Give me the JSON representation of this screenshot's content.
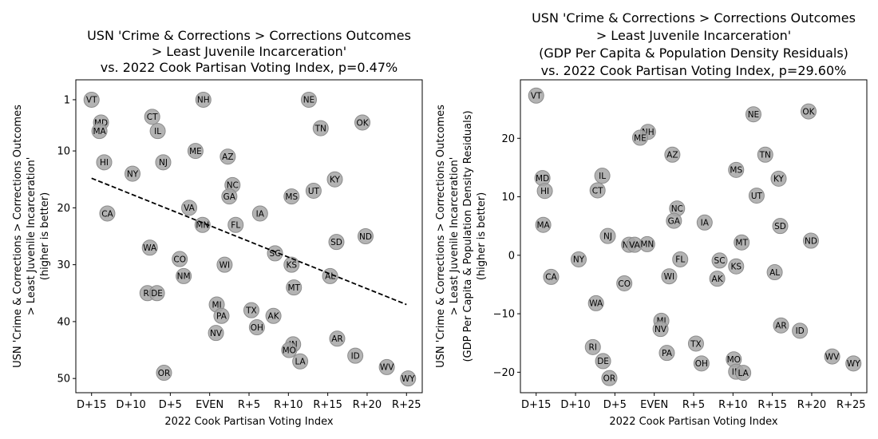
{
  "chart_data": [
    {
      "type": "scatter",
      "title": [
        "USN 'Crime & Corrections > Corrections Outcomes",
        "> Least Juvenile Incarceration'",
        "vs. 2022 Cook Partisan Voting Index, p=0.47%"
      ],
      "xlabel": "2022 Cook Partisan Voting Index",
      "ylabel": [
        "USN 'Crime & Corrections > Corrections Outcomes",
        "> Least Juvenile Incarceration'",
        "(higher is better)"
      ],
      "xlim": [
        -17,
        27
      ],
      "ylim": [
        52.5,
        -2.5
      ],
      "y_inverted": true,
      "xticks": [
        -15,
        -10,
        -5,
        0,
        5,
        10,
        15,
        20,
        25
      ],
      "xtick_labels": [
        "D+15",
        "D+10",
        "D+5",
        "EVEN",
        "R+5",
        "R+10",
        "R+15",
        "R+20",
        "R+25"
      ],
      "yticks": [
        1,
        10,
        20,
        30,
        40,
        50
      ],
      "ytick_labels": [
        "1",
        "10",
        "20",
        "30",
        "40",
        "50"
      ],
      "trendline": {
        "x": [
          -15,
          25
        ],
        "y": [
          14.8,
          37.0
        ]
      },
      "points": [
        {
          "label": "VT",
          "x": -15,
          "y": 1
        },
        {
          "label": "MD",
          "x": -13.8,
          "y": 5
        },
        {
          "label": "MA",
          "x": -14,
          "y": 6.5
        },
        {
          "label": "HI",
          "x": -13.4,
          "y": 12
        },
        {
          "label": "CA",
          "x": -13,
          "y": 21
        },
        {
          "label": "NY",
          "x": -9.8,
          "y": 14
        },
        {
          "label": "CT",
          "x": -7.3,
          "y": 4
        },
        {
          "label": "IL",
          "x": -6.6,
          "y": 6.5
        },
        {
          "label": "NJ",
          "x": -5.9,
          "y": 12
        },
        {
          "label": "WA",
          "x": -7.6,
          "y": 27
        },
        {
          "label": "RI",
          "x": -7.9,
          "y": 35
        },
        {
          "label": "DE",
          "x": -6.7,
          "y": 35
        },
        {
          "label": "OR",
          "x": -5.8,
          "y": 49
        },
        {
          "label": "ME",
          "x": -1.8,
          "y": 10
        },
        {
          "label": "VA",
          "x": -2.6,
          "y": 20
        },
        {
          "label": "CO",
          "x": -3.8,
          "y": 29
        },
        {
          "label": "NM",
          "x": -3.3,
          "y": 32
        },
        {
          "label": "MN",
          "x": -0.9,
          "y": 23
        },
        {
          "label": "NH",
          "x": -0.8,
          "y": 1
        },
        {
          "label": "AZ",
          "x": 2.3,
          "y": 11
        },
        {
          "label": "NC",
          "x": 2.9,
          "y": 16
        },
        {
          "label": "GA",
          "x": 2.5,
          "y": 18
        },
        {
          "label": "FL",
          "x": 3.3,
          "y": 23
        },
        {
          "label": "WI",
          "x": 1.9,
          "y": 30
        },
        {
          "label": "MI",
          "x": 0.9,
          "y": 37
        },
        {
          "label": "PA",
          "x": 1.5,
          "y": 39
        },
        {
          "label": "NV",
          "x": 0.8,
          "y": 42
        },
        {
          "label": "IA",
          "x": 6.4,
          "y": 21
        },
        {
          "label": "SC",
          "x": 8.3,
          "y": 28
        },
        {
          "label": "TX",
          "x": 5.3,
          "y": 38
        },
        {
          "label": "OH",
          "x": 6,
          "y": 41
        },
        {
          "label": "AK",
          "x": 8.1,
          "y": 39
        },
        {
          "label": "NE",
          "x": 12.6,
          "y": 1
        },
        {
          "label": "TN",
          "x": 14.1,
          "y": 6
        },
        {
          "label": "KY",
          "x": 15.9,
          "y": 15
        },
        {
          "label": "UT",
          "x": 13.2,
          "y": 17
        },
        {
          "label": "MS",
          "x": 10.4,
          "y": 18
        },
        {
          "label": "KS",
          "x": 10.4,
          "y": 30
        },
        {
          "label": "MT",
          "x": 10.7,
          "y": 34
        },
        {
          "label": "AL",
          "x": 15.3,
          "y": 32
        },
        {
          "label": "SD",
          "x": 16.1,
          "y": 26
        },
        {
          "label": "ND",
          "x": 19.8,
          "y": 25
        },
        {
          "label": "OK",
          "x": 19.4,
          "y": 5
        },
        {
          "label": "IN",
          "x": 10.6,
          "y": 44
        },
        {
          "label": "MO",
          "x": 10.1,
          "y": 45
        },
        {
          "label": "LA",
          "x": 11.5,
          "y": 47
        },
        {
          "label": "AR",
          "x": 16.2,
          "y": 43
        },
        {
          "label": "ID",
          "x": 18.5,
          "y": 46
        },
        {
          "label": "WV",
          "x": 22.5,
          "y": 48
        },
        {
          "label": "WY",
          "x": 25.2,
          "y": 50
        }
      ]
    },
    {
      "type": "scatter",
      "title": [
        "USN 'Crime & Corrections > Corrections Outcomes",
        "> Least Juvenile Incarceration'",
        "(GDP Per Capita & Population Density Residuals)",
        "vs. 2022 Cook Partisan Voting Index, p=29.60%"
      ],
      "xlabel": "2022 Cook Partisan Voting Index",
      "ylabel": [
        "USN 'Crime & Corrections > Corrections Outcomes",
        "> Least Juvenile Incarceration'",
        "(GDP Per Capita & Population Density Residuals)",
        "(higher is better)"
      ],
      "xlim": [
        -17,
        27
      ],
      "ylim": [
        -23.5,
        30
      ],
      "xticks": [
        -15,
        -10,
        -5,
        0,
        5,
        10,
        15,
        20,
        25
      ],
      "xtick_labels": [
        "D+15",
        "D+10",
        "D+5",
        "EVEN",
        "R+5",
        "R+10",
        "R+15",
        "R+20",
        "R+25"
      ],
      "yticks": [
        -20,
        -10,
        0,
        10,
        20
      ],
      "ytick_labels": [
        "−20",
        "−10",
        "0",
        "10",
        "20"
      ],
      "points": [
        {
          "label": "VT",
          "x": -15,
          "y": 27.3
        },
        {
          "label": "MD",
          "x": -14.2,
          "y": 13.2
        },
        {
          "label": "HI",
          "x": -13.9,
          "y": 11
        },
        {
          "label": "MA",
          "x": -14.1,
          "y": 5.2
        },
        {
          "label": "CA",
          "x": -13.1,
          "y": -3.7
        },
        {
          "label": "NY",
          "x": -9.6,
          "y": -0.7
        },
        {
          "label": "IL",
          "x": -6.6,
          "y": 13.6
        },
        {
          "label": "CT",
          "x": -7.2,
          "y": 11.1
        },
        {
          "label": "NJ",
          "x": -5.9,
          "y": 3.3
        },
        {
          "label": "WA",
          "x": -7.4,
          "y": -8.2
        },
        {
          "label": "RI",
          "x": -7.8,
          "y": -15.7
        },
        {
          "label": "DE",
          "x": -6.5,
          "y": -18.1
        },
        {
          "label": "OR",
          "x": -5.7,
          "y": -21
        },
        {
          "label": "NH",
          "x": -0.8,
          "y": 21.1
        },
        {
          "label": "ME",
          "x": -1.8,
          "y": 20.1
        },
        {
          "label": "NM",
          "x": -3.2,
          "y": 1.8
        },
        {
          "label": "VA",
          "x": -2.5,
          "y": 1.8
        },
        {
          "label": "MN",
          "x": -0.9,
          "y": 1.9
        },
        {
          "label": "CO",
          "x": -3.8,
          "y": -4.8
        },
        {
          "label": "AZ",
          "x": 2.3,
          "y": 17.2
        },
        {
          "label": "NC",
          "x": 2.9,
          "y": 8
        },
        {
          "label": "GA",
          "x": 2.5,
          "y": 5.9
        },
        {
          "label": "FL",
          "x": 3.3,
          "y": -0.7
        },
        {
          "label": "WI",
          "x": 1.9,
          "y": -3.6
        },
        {
          "label": "MI",
          "x": 0.9,
          "y": -11.2
        },
        {
          "label": "NV",
          "x": 0.8,
          "y": -12.6
        },
        {
          "label": "PA",
          "x": 1.6,
          "y": -16.7
        },
        {
          "label": "IA",
          "x": 6.4,
          "y": 5.6
        },
        {
          "label": "SC",
          "x": 8.3,
          "y": -0.9
        },
        {
          "label": "AK",
          "x": 8,
          "y": -4
        },
        {
          "label": "TX",
          "x": 5.3,
          "y": -15.1
        },
        {
          "label": "OH",
          "x": 6,
          "y": -18.5
        },
        {
          "label": "NE",
          "x": 12.6,
          "y": 24.1
        },
        {
          "label": "TN",
          "x": 14.1,
          "y": 17.2
        },
        {
          "label": "MS",
          "x": 10.4,
          "y": 14.6
        },
        {
          "label": "KY",
          "x": 15.8,
          "y": 13.1
        },
        {
          "label": "UT",
          "x": 13,
          "y": 10.2
        },
        {
          "label": "SD",
          "x": 16,
          "y": 5
        },
        {
          "label": "MT",
          "x": 11.1,
          "y": 2.2
        },
        {
          "label": "KS",
          "x": 10.4,
          "y": -1.9
        },
        {
          "label": "AL",
          "x": 15.3,
          "y": -2.9
        },
        {
          "label": "ND",
          "x": 19.9,
          "y": 2.5
        },
        {
          "label": "OK",
          "x": 19.6,
          "y": 24.6
        },
        {
          "label": "AR",
          "x": 16.1,
          "y": -12
        },
        {
          "label": "ID",
          "x": 18.5,
          "y": -12.9
        },
        {
          "label": "MO",
          "x": 10.1,
          "y": -17.8
        },
        {
          "label": "IN",
          "x": 10.4,
          "y": -19.9
        },
        {
          "label": "LA",
          "x": 11.3,
          "y": -20.1
        },
        {
          "label": "WV",
          "x": 22.6,
          "y": -17.3
        },
        {
          "label": "WY",
          "x": 25.3,
          "y": -18.5
        }
      ]
    }
  ]
}
